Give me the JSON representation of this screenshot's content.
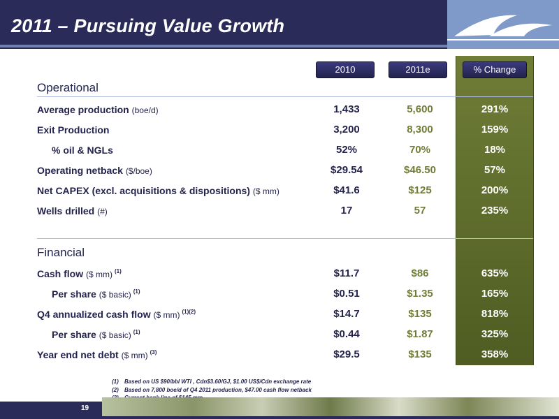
{
  "title": "2011 – Pursuing Value Growth",
  "columns": {
    "c2010": "2010",
    "c2011": "2011e",
    "change": "% Change"
  },
  "sections": {
    "operational": "Operational",
    "financial": "Financial"
  },
  "rows": [
    {
      "label": "Average production",
      "unit": "(boe/d)",
      "sup": "",
      "indent": false,
      "v2010": "1,433",
      "v2011": "5,600",
      "change": "291%"
    },
    {
      "label": "Exit Production",
      "unit": "",
      "sup": "",
      "indent": false,
      "v2010": "3,200",
      "v2011": "8,300",
      "change": "159%"
    },
    {
      "label": "% oil & NGLs",
      "unit": "",
      "sup": "",
      "indent": true,
      "v2010": "52%",
      "v2011": "70%",
      "change": "18%"
    },
    {
      "label": "Operating netback",
      "unit": "($/boe)",
      "sup": "",
      "indent": false,
      "v2010": "$29.54",
      "v2011": "$46.50",
      "change": "57%"
    },
    {
      "label": "Net CAPEX (excl. acquisitions & dispositions)",
      "unit": "($ mm)",
      "sup": "",
      "indent": false,
      "v2010": "$41.6",
      "v2011": "$125",
      "change": "200%"
    },
    {
      "label": "Wells drilled",
      "unit": "(#)",
      "sup": "",
      "indent": false,
      "v2010": "17",
      "v2011": "57",
      "change": "235%"
    },
    {
      "label": "Cash flow",
      "unit": "($ mm)",
      "sup": "(1)",
      "indent": false,
      "v2010": "$11.7",
      "v2011": "$86",
      "change": "635%"
    },
    {
      "label": "Per share",
      "unit": "($ basic)",
      "sup": "(1)",
      "indent": true,
      "v2010": "$0.51",
      "v2011": "$1.35",
      "change": "165%"
    },
    {
      "label": "Q4 annualized cash flow",
      "unit": "($ mm)",
      "sup": "(1)(2)",
      "indent": false,
      "v2010": "$14.7",
      "v2011": "$135",
      "change": "818%"
    },
    {
      "label": "Per share",
      "unit": "($ basic)",
      "sup": "(1)",
      "indent": true,
      "v2010": "$0.44",
      "v2011": "$1.87",
      "change": "325%"
    },
    {
      "label": "Year end net debt",
      "unit": "($ mm)",
      "sup": "(3)",
      "indent": false,
      "v2010": "$29.5",
      "v2011": "$135",
      "change": "358%"
    }
  ],
  "footnotes": [
    {
      "num": "(1)",
      "text": "Based on US $90/bbl WTI , Cdn$3.60/GJ, $1.00 US$/Cdn exchange rate"
    },
    {
      "num": "(2)",
      "text": "Based on 7,800 boe/d of Q4 2011 production, $47.00 cash flow netback"
    },
    {
      "num": "(3)",
      "text": "Current bank line of $145 mm"
    }
  ],
  "page_number": "19",
  "colors": {
    "navy": "#2b2b59",
    "olive": "#6f7d37",
    "logo_blue": "#7f9ac8"
  },
  "icons": {
    "logo": "wave-logo-icon"
  }
}
